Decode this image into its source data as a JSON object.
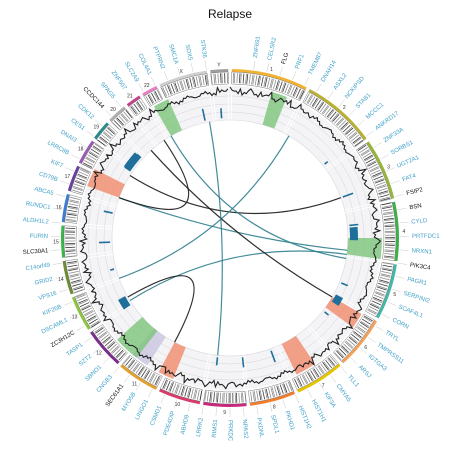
{
  "title": "Relapse",
  "colors": {
    "gene_label": "#3fa0c8",
    "gene_label_highlight": "#111111",
    "link_teal": "#2f7f8f",
    "link_dark": "#1a1a1a",
    "bar_blue": "#1f6f9a",
    "band_green": "#7cc47a",
    "band_salmon": "#f08a6a",
    "band_lavender": "#c9c4e0"
  },
  "chromosomes": [
    {
      "num": "1",
      "color": "#f2b233"
    },
    {
      "num": "2",
      "color": "#b9b036"
    },
    {
      "num": "3",
      "color": "#97b53a"
    },
    {
      "num": "4",
      "color": "#3db04a"
    },
    {
      "num": "5",
      "color": "#45b7a7"
    },
    {
      "num": "6",
      "color": "#f0a25a"
    },
    {
      "num": "7",
      "color": "#e6c400"
    },
    {
      "num": "8",
      "color": "#ef7e2e"
    },
    {
      "num": "9",
      "color": "#c9287d"
    },
    {
      "num": "10",
      "color": "#d93b6a"
    },
    {
      "num": "11",
      "color": "#e3a12f"
    },
    {
      "num": "12",
      "color": "#7b2d8b"
    },
    {
      "num": "13",
      "color": "#8cc63f"
    },
    {
      "num": "14",
      "color": "#6d8c3a"
    },
    {
      "num": "15",
      "color": "#39b54a"
    },
    {
      "num": "16",
      "color": "#3d7bd4"
    },
    {
      "num": "17",
      "color": "#6a3fa0"
    },
    {
      "num": "18",
      "color": "#9a5bb8"
    },
    {
      "num": "19",
      "color": "#2b8c8c"
    },
    {
      "num": "20",
      "color": "#b0b0b0"
    },
    {
      "num": "21",
      "color": "#c2448f"
    },
    {
      "num": "22",
      "color": "#e87ec3"
    },
    {
      "num": "X",
      "color": "#cfcfcf"
    },
    {
      "num": "Y",
      "color": "#9d9d9d"
    }
  ],
  "genes": [
    {
      "name": "ZNF691",
      "hl": false
    },
    {
      "name": "CELSR2",
      "hl": false
    },
    {
      "name": "FLG",
      "hl": true
    },
    {
      "name": "PRF1",
      "hl": false
    },
    {
      "name": "TMEM87",
      "hl": false
    },
    {
      "name": "DNAH14",
      "hl": false
    },
    {
      "name": "ASXL2",
      "hl": false
    },
    {
      "name": "NCKIPSD",
      "hl": false
    },
    {
      "name": "STAB1",
      "hl": false
    },
    {
      "name": "MCCC1",
      "hl": false
    },
    {
      "name": "ANKRD17",
      "hl": false
    },
    {
      "name": "ZNF33A",
      "hl": false
    },
    {
      "name": "SORBS1",
      "hl": false
    },
    {
      "name": "UGT2A1",
      "hl": false
    },
    {
      "name": "FAT4",
      "hl": false
    },
    {
      "name": "FSIP2",
      "hl": true
    },
    {
      "name": "BSN",
      "hl": true
    },
    {
      "name": "CYLD",
      "hl": false
    },
    {
      "name": "PRTFDC1",
      "hl": false
    },
    {
      "name": "NRXN1",
      "hl": false
    },
    {
      "name": "PIK3C4",
      "hl": true
    },
    {
      "name": "PAGR1",
      "hl": false
    },
    {
      "name": "SERPINI2",
      "hl": false
    },
    {
      "name": "SCAF4L1",
      "hl": false
    },
    {
      "name": "CORN",
      "hl": false
    },
    {
      "name": "TRYL",
      "hl": false
    },
    {
      "name": "TMPRSS11",
      "hl": false
    },
    {
      "name": "IGTGA3",
      "hl": false
    },
    {
      "name": "ARSJ",
      "hl": false
    },
    {
      "name": "TLL1",
      "hl": false
    },
    {
      "name": "CMYA5",
      "hl": false
    },
    {
      "name": "KIF3A",
      "hl": false
    },
    {
      "name": "HIST1H1",
      "hl": false
    },
    {
      "name": "HIST1H2",
      "hl": false
    },
    {
      "name": "PKHD1",
      "hl": false
    },
    {
      "name": "SPDL1",
      "hl": false
    },
    {
      "name": "PXDNL",
      "hl": false
    },
    {
      "name": "NPAS2",
      "hl": false
    },
    {
      "name": "PRKDC",
      "hl": false
    },
    {
      "name": "RIMS1",
      "hl": false
    },
    {
      "name": "LRRK2",
      "hl": false
    },
    {
      "name": "ABHD9",
      "hl": false
    },
    {
      "name": "PDE4DIP",
      "hl": false
    },
    {
      "name": "CSMD1",
      "hl": false
    },
    {
      "name": "LINGO1",
      "hl": false
    },
    {
      "name": "MYO5B",
      "hl": false
    },
    {
      "name": "SEC61A1",
      "hl": true
    },
    {
      "name": "CNGB3",
      "hl": false
    },
    {
      "name": "SBNO1",
      "hl": false
    },
    {
      "name": "SZT2",
      "hl": false
    },
    {
      "name": "TASP1",
      "hl": false
    },
    {
      "name": "ZC3H12C",
      "hl": true
    },
    {
      "name": "DSCAML1",
      "hl": false
    },
    {
      "name": "KIF26B",
      "hl": false
    },
    {
      "name": "VPS16",
      "hl": false
    },
    {
      "name": "GRID2",
      "hl": false
    },
    {
      "name": "C14orf49",
      "hl": false
    },
    {
      "name": "SLC30A1",
      "hl": true
    },
    {
      "name": "FURIN",
      "hl": false
    },
    {
      "name": "ALDH1L2",
      "hl": false
    },
    {
      "name": "RUNDC1",
      "hl": false
    },
    {
      "name": "ABCA5",
      "hl": false
    },
    {
      "name": "CD79B",
      "hl": false
    },
    {
      "name": "KIF7",
      "hl": false
    },
    {
      "name": "LRRC8B",
      "hl": false
    },
    {
      "name": "DNAI3",
      "hl": false
    },
    {
      "name": "CES1",
      "hl": false
    },
    {
      "name": "CDK12",
      "hl": false
    },
    {
      "name": "CCDC144",
      "hl": true
    },
    {
      "name": "SPAG5",
      "hl": false
    },
    {
      "name": "ZNF507",
      "hl": false
    },
    {
      "name": "SLC2A9",
      "hl": false
    },
    {
      "name": "COL4A1",
      "hl": false
    },
    {
      "name": "PTPRN2",
      "hl": false
    },
    {
      "name": "SMC1A",
      "hl": false
    },
    {
      "name": "SOX5",
      "hl": false
    },
    {
      "name": "STK36",
      "hl": false
    }
  ]
}
